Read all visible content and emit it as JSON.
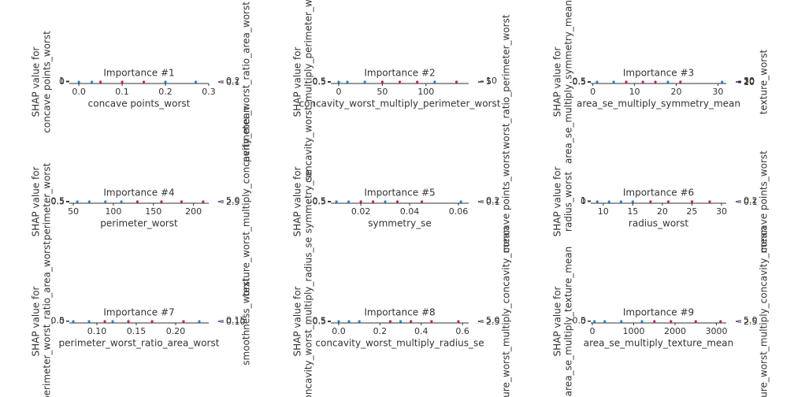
{
  "chart_data": [
    {
      "type": "scatter",
      "title": "Importance #1",
      "xlabel": "concave points_worst",
      "ylabel": [
        "SHAP value for",
        "concave points_worst"
      ],
      "colorbar_label": "perimeter_worst_ratio_area_worst",
      "xlim": [
        -0.022,
        0.3
      ],
      "xticks": [
        {
          "value": 0,
          "label": "0.0"
        },
        0.1,
        0.2,
        0.3
      ],
      "ylim": [
        -1,
        1
      ],
      "yticks": [
        0,
        1
      ],
      "clim": [
        0.1,
        0.2
      ],
      "colorbar_ticks": [
        0.1,
        0.2
      ],
      "series": [
        {
          "color": "#1e88e5",
          "x": [
            0.0,
            0.03,
            0.2,
            0.27
          ],
          "values": [
            0,
            0,
            0,
            0
          ]
        },
        {
          "color": "#d6186f",
          "x": [
            0.05,
            0.1,
            0.15
          ],
          "values": [
            0,
            0,
            0
          ]
        }
      ]
    },
    {
      "type": "scatter",
      "title": "Importance #2",
      "xlabel": "concavity_worst_multiply_perimeter_worst",
      "ylabel": [
        "SHAP value for",
        "concavity_worst_multiply_perimeter_worst"
      ],
      "colorbar_label": "worst_ratio_perimeter_worst",
      "xlim": [
        -9,
        149
      ],
      "xticks": [
        0,
        50,
        100
      ],
      "ylim": [
        -1,
        1
      ],
      "yticks": [
        -0.5,
        0.5
      ],
      "clim": [
        1,
        10
      ],
      "colorbar_ticks": [
        5,
        10
      ],
      "series": [
        {
          "color": "#1e88e5",
          "x": [
            0,
            10,
            30,
            110
          ],
          "values": [
            0,
            0,
            0,
            0
          ]
        },
        {
          "color": "#d6186f",
          "x": [
            50,
            70,
            90,
            135
          ],
          "values": [
            0,
            0,
            0,
            0
          ]
        }
      ]
    },
    {
      "type": "scatter",
      "title": "Importance #3",
      "xlabel": "area_se_multiply_symmetry_mean",
      "ylabel": [
        "SHAP value for",
        "area_se_multiply_symmetry_mean"
      ],
      "colorbar_label": "texture_worst",
      "xlim": [
        -0.5,
        32
      ],
      "xticks": [
        0,
        10,
        20,
        30
      ],
      "ylim": [
        -1,
        1
      ],
      "yticks": [
        -0.5,
        0.5
      ],
      "clim": [
        10,
        30
      ],
      "colorbar_ticks": [
        10,
        20,
        30
      ],
      "series": [
        {
          "color": "#1e88e5",
          "x": [
            1,
            5,
            18,
            31
          ],
          "values": [
            0,
            0,
            0,
            0
          ]
        },
        {
          "color": "#d6186f",
          "x": [
            8,
            12,
            15,
            21
          ],
          "values": [
            0,
            0,
            0,
            0
          ]
        }
      ]
    },
    {
      "type": "scatter",
      "title": "Importance #4",
      "xlabel": "perimeter_worst",
      "ylabel": [
        "SHAP value for",
        "perimeter_worst"
      ],
      "colorbar_label": "texture_worst_multiply_concavity_mean",
      "xlim": [
        45,
        219
      ],
      "xticks": [
        50,
        100,
        150,
        200
      ],
      "ylim": [
        -1,
        1
      ],
      "yticks": [
        -0.5,
        0.5
      ],
      "clim": [
        2.5,
        5
      ],
      "colorbar_ticks": [
        2.5,
        {
          "value": 5,
          "label": "5.0"
        }
      ],
      "series": [
        {
          "color": "#1e88e5",
          "x": [
            55,
            70,
            90,
            110
          ],
          "values": [
            0,
            0,
            0,
            0
          ]
        },
        {
          "color": "#d6186f",
          "x": [
            130,
            160,
            185,
            212
          ],
          "values": [
            0,
            0,
            0,
            0
          ]
        }
      ]
    },
    {
      "type": "scatter",
      "title": "Importance #5",
      "xlabel": "symmetry_se",
      "ylabel": [
        "SHAP value for",
        "symmetry_se"
      ],
      "colorbar_label": "concave points_worst",
      "xlim": [
        0.0077,
        0.0642
      ],
      "xticks": [
        0.02,
        0.04,
        0.06
      ],
      "ylim": [
        -1,
        1
      ],
      "yticks": [
        -0.5,
        0.5
      ],
      "clim": [
        0.1,
        0.2
      ],
      "colorbar_ticks": [
        0.1,
        0.2
      ],
      "series": [
        {
          "color": "#1e88e5",
          "x": [
            0.01,
            0.015,
            0.03,
            0.061
          ],
          "values": [
            0,
            0,
            0,
            0
          ]
        },
        {
          "color": "#d6186f",
          "x": [
            0.02,
            0.025,
            0.035,
            0.045
          ],
          "values": [
            0,
            0,
            0,
            0
          ]
        }
      ]
    },
    {
      "type": "scatter",
      "title": "Importance #6",
      "xlabel": "radius_worst",
      "ylabel": [
        "SHAP value for",
        "radius_worst"
      ],
      "colorbar_label": "concave points_worst",
      "xlim": [
        7.9,
        30.8
      ],
      "xticks": [
        10,
        15,
        20,
        25,
        30
      ],
      "ylim": [
        -1,
        1
      ],
      "yticks": [
        0,
        1
      ],
      "clim": [
        0.1,
        0.2
      ],
      "colorbar_ticks": [
        0.1,
        0.2
      ],
      "series": [
        {
          "color": "#1e88e5",
          "x": [
            9,
            11,
            13,
            15
          ],
          "values": [
            0,
            0,
            0,
            0
          ]
        },
        {
          "color": "#d6186f",
          "x": [
            18,
            21,
            25,
            28
          ],
          "values": [
            0,
            0,
            0,
            0
          ]
        }
      ]
    },
    {
      "type": "scatter",
      "title": "Importance #7",
      "xlabel": "perimeter_worst_ratio_area_worst",
      "ylabel": [
        "SHAP value for",
        "perimeter_worst_ratio_area_worst"
      ],
      "colorbar_label": "smoothness_worst",
      "xlim": [
        0.065,
        0.242
      ],
      "xticks": [
        {
          "value": 0.1,
          "label": "0.10"
        },
        0.15,
        {
          "value": 0.2,
          "label": "0.20"
        }
      ],
      "ylim": [
        -1,
        1
      ],
      "yticks": [
        0,
        0.5
      ],
      "clim": [
        0.1,
        0.15
      ],
      "colorbar_ticks": [
        {
          "value": 0.1,
          "label": "0.10"
        },
        0.15
      ],
      "series": [
        {
          "color": "#1e88e5",
          "x": [
            0.07,
            0.09,
            0.12,
            0.23
          ],
          "values": [
            0,
            0,
            0,
            0
          ]
        },
        {
          "color": "#d6186f",
          "x": [
            0.11,
            0.14,
            0.17,
            0.21
          ],
          "values": [
            0,
            0,
            0,
            0
          ]
        }
      ]
    },
    {
      "type": "scatter",
      "title": "Importance #8",
      "xlabel": "concavity_worst_multiply_radius_se",
      "ylabel": [
        "SHAP value for",
        "concavity_worst_multiply_radius_se"
      ],
      "colorbar_label": "texture_worst_multiply_concavity_mean",
      "xlim": [
        -0.038,
        0.63
      ],
      "xticks": [
        {
          "value": 0,
          "label": "0.0"
        },
        0.2,
        0.4,
        0.6
      ],
      "ylim": [
        -1,
        1
      ],
      "yticks": [
        -0.5,
        0.5
      ],
      "clim": [
        2.5,
        5
      ],
      "colorbar_ticks": [
        2.5,
        {
          "value": 5,
          "label": "5.0"
        }
      ],
      "series": [
        {
          "color": "#1e88e5",
          "x": [
            0.0,
            0.05,
            0.1,
            0.3
          ],
          "values": [
            0,
            0,
            0,
            0
          ]
        },
        {
          "color": "#d6186f",
          "x": [
            0.25,
            0.35,
            0.45,
            0.58
          ],
          "values": [
            0,
            0,
            0,
            0
          ]
        }
      ]
    },
    {
      "type": "scatter",
      "title": "Importance #9",
      "xlabel": "area_se_multiply_texture_mean",
      "ylabel": [
        "SHAP value for",
        "area_se_multiply_texture_mean"
      ],
      "colorbar_label": "texture_worst_multiply_concavity_mean",
      "xlim": [
        -38,
        3238
      ],
      "xticks": [
        0,
        1000,
        2000,
        3000
      ],
      "ylim": [
        -1,
        1
      ],
      "yticks": [
        0,
        0.5
      ],
      "clim": [
        2.5,
        5
      ],
      "colorbar_ticks": [
        2.5,
        {
          "value": 5,
          "label": "5.0"
        }
      ],
      "series": [
        {
          "color": "#1e88e5",
          "x": [
            50,
            300,
            700,
            1200
          ],
          "values": [
            0,
            0,
            0,
            0
          ]
        },
        {
          "color": "#d6186f",
          "x": [
            1500,
            1900,
            2500,
            3100
          ],
          "values": [
            0,
            0,
            0,
            0
          ]
        }
      ]
    }
  ]
}
